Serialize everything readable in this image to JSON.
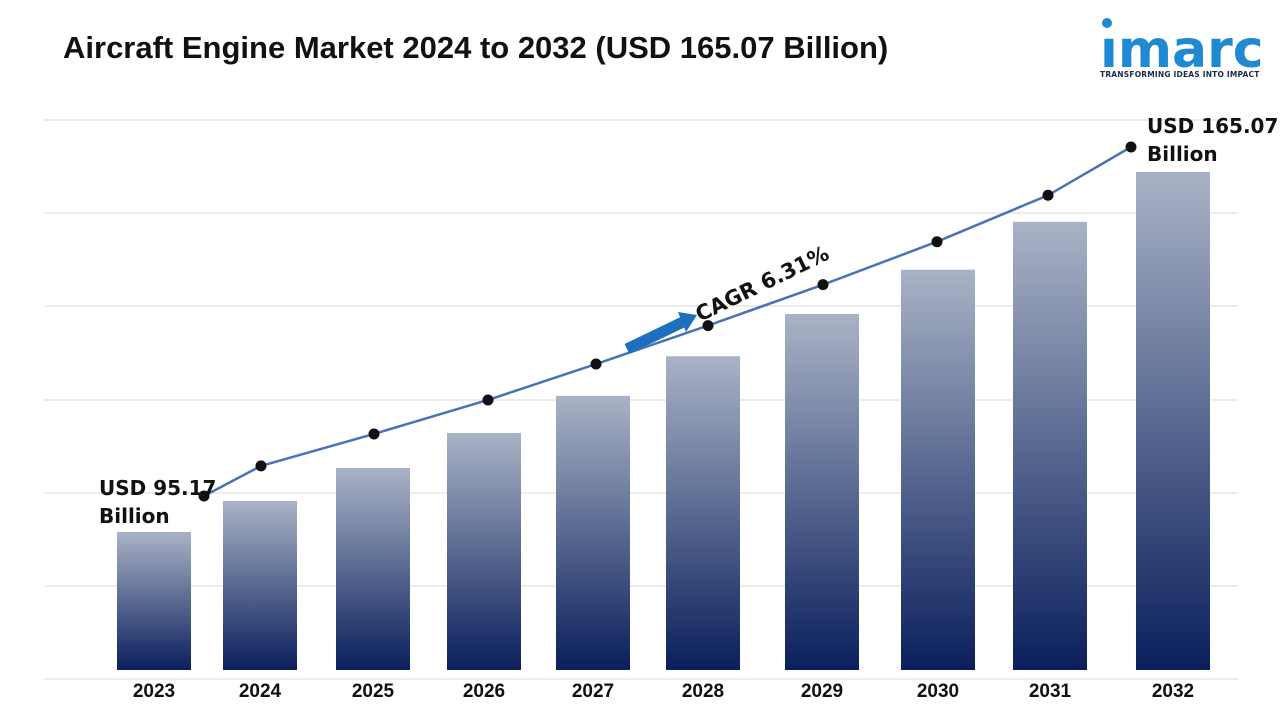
{
  "header": {
    "title": "Aircraft Engine Market 2024 to 2032 (USD 165.07 Billion)"
  },
  "logo": {
    "word": "ımarc",
    "tagline": "TRANSFORMING IDEAS INTO IMPACT",
    "color": "#1f8ad1"
  },
  "chart_data": {
    "type": "bar",
    "title": "Aircraft Engine Market 2024 to 2032 (USD 165.07 Billion)",
    "categories": [
      "2023",
      "2024",
      "2025",
      "2026",
      "2027",
      "2028",
      "2029",
      "2030",
      "2031",
      "2032"
    ],
    "series": [
      {
        "values": [
          95.17,
          101.2,
          107.6,
          114.4,
          121.6,
          129.3,
          137.5,
          146.1,
          155.4,
          165.07
        ]
      }
    ],
    "trend_line": {
      "values": [
        95.17,
        101.2,
        107.6,
        114.4,
        121.6,
        129.3,
        137.5,
        146.1,
        155.4,
        165.07
      ],
      "color": "#4a72b8"
    },
    "annotations": {
      "start": {
        "line1": "USD 95.17",
        "line2": "Billion"
      },
      "end": {
        "line1": "USD 165.07",
        "line2": "Billion"
      },
      "cagr": "CAGR 6.31%"
    },
    "ylim": [
      0,
      180
    ],
    "grid": true,
    "colors": {
      "bar_top": "#a9b3c6",
      "bar_bottom": "#0a1f5c",
      "arrow": "#1f6fbf",
      "gridline": "#d9d9d9"
    }
  }
}
